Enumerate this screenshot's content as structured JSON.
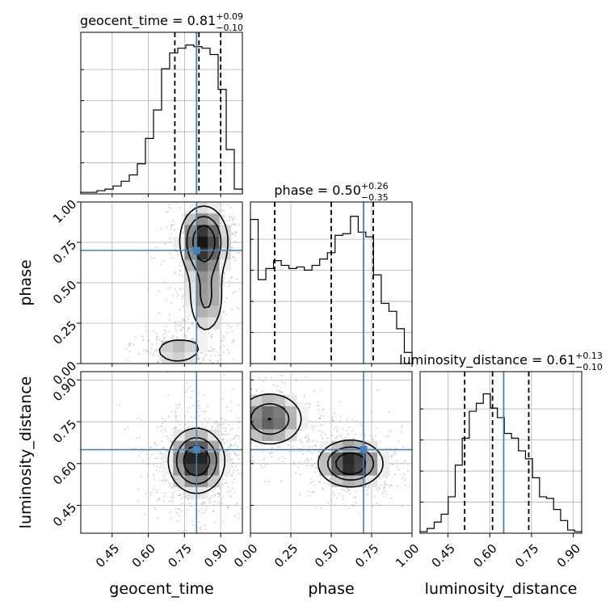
{
  "chart_data": {
    "type": "corner",
    "truths": {
      "geocent_time": 0.8,
      "phase": 0.7,
      "luminosity_distance": 0.65
    },
    "truth_color": "#4682b4",
    "params": [
      {
        "name": "geocent_time",
        "axis_label": "geocent_time",
        "lim": [
          0.32,
          0.99
        ],
        "ticks": [
          0.45,
          0.6,
          0.75,
          0.9
        ],
        "tick_labels": [
          "0.45",
          "0.60",
          "0.75",
          "0.90"
        ],
        "quantiles": [
          0.71,
          0.81,
          0.9
        ],
        "title": {
          "main": "geocent_time = 0.81",
          "sup": "+0.09",
          "sub": "−0.10"
        },
        "hist": [
          0.01,
          0.01,
          0.02,
          0.03,
          0.05,
          0.08,
          0.12,
          0.19,
          0.35,
          0.53,
          0.79,
          0.89,
          0.92,
          0.94,
          0.93,
          0.92,
          0.88,
          0.66,
          0.28,
          0.03
        ]
      },
      {
        "name": "phase",
        "axis_label": "phase",
        "lim": [
          0.0,
          1.0
        ],
        "ticks": [
          0.0,
          0.25,
          0.5,
          0.75,
          1.0
        ],
        "tick_labels": [
          "0.00",
          "0.25",
          "0.50",
          "0.75",
          "1.00"
        ],
        "quantiles": [
          0.15,
          0.5,
          0.76
        ],
        "title": {
          "main": "phase = 0.50",
          "sup": "+0.26",
          "sub": "−0.35"
        },
        "hist": [
          0.91,
          0.53,
          0.6,
          0.65,
          0.62,
          0.6,
          0.61,
          0.59,
          0.62,
          0.66,
          0.7,
          0.81,
          0.82,
          0.93,
          0.83,
          0.8,
          0.56,
          0.38,
          0.33,
          0.22,
          0.07
        ]
      },
      {
        "name": "luminosity_distance",
        "axis_label": "luminosity_distance",
        "lim": [
          0.35,
          0.93
        ],
        "ticks": [
          0.45,
          0.6,
          0.75,
          0.9
        ],
        "tick_labels": [
          "0.45",
          "0.60",
          "0.75",
          "0.90"
        ],
        "quantiles": [
          0.51,
          0.61,
          0.74
        ],
        "title": {
          "main": "luminosity_distance = 0.61",
          "sup": "+0.13",
          "sub": "−0.10"
        },
        "hist": [
          0.01,
          0.03,
          0.07,
          0.12,
          0.23,
          0.43,
          0.6,
          0.77,
          0.82,
          0.88,
          0.79,
          0.73,
          0.63,
          0.6,
          0.52,
          0.47,
          0.35,
          0.23,
          0.22,
          0.15,
          0.08,
          0.02,
          0.01
        ]
      }
    ],
    "joint": [
      {
        "x": "geocent_time",
        "y": "phase",
        "modes": [
          {
            "mx": 0.83,
            "my": 0.76,
            "sx": 0.06,
            "sy": 0.13,
            "w": 1.0
          },
          {
            "mx": 0.84,
            "my": 0.4,
            "sx": 0.05,
            "sy": 0.15,
            "w": 0.55
          },
          {
            "mx": 0.72,
            "my": 0.08,
            "sx": 0.07,
            "sy": 0.06,
            "w": 0.45
          }
        ]
      },
      {
        "x": "geocent_time",
        "y": "luminosity_distance",
        "modes": [
          {
            "mx": 0.8,
            "my": 0.61,
            "sx": 0.07,
            "sy": 0.07,
            "w": 1.0
          }
        ]
      },
      {
        "x": "phase",
        "y": "luminosity_distance",
        "modes": [
          {
            "mx": 0.62,
            "my": 0.6,
            "sx": 0.12,
            "sy": 0.05,
            "w": 1.0
          },
          {
            "mx": 0.12,
            "my": 0.76,
            "sx": 0.13,
            "sy": 0.06,
            "w": 0.75
          }
        ]
      }
    ],
    "contour_levels": [
      0.25,
      0.5,
      0.75
    ],
    "grid": true
  }
}
